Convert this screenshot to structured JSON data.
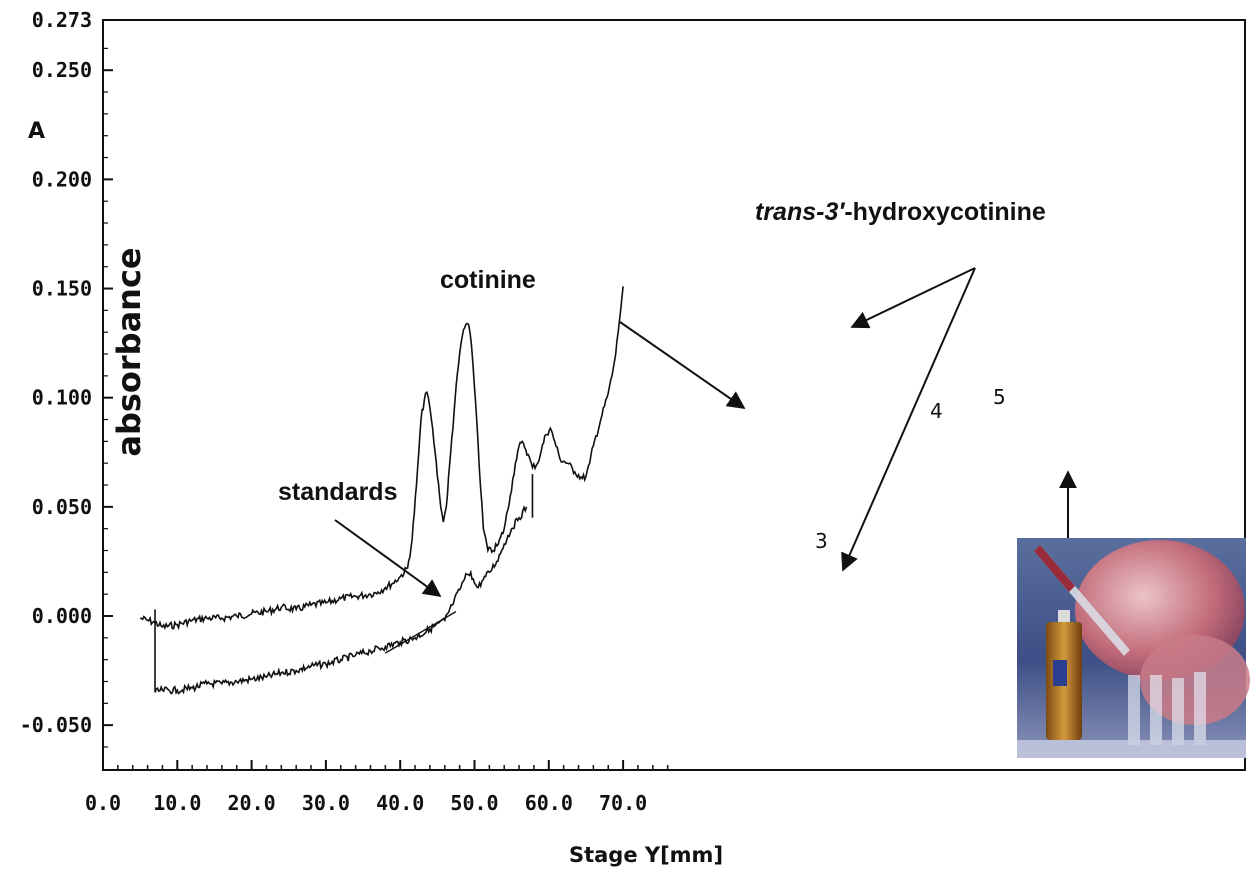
{
  "chart_data": {
    "type": "line",
    "title": "",
    "xlabel": "Stage Y[mm]",
    "ylabel": "absorbance",
    "y_unit_label": "A",
    "xlim": [
      0.0,
      77.0
    ],
    "ylim": [
      -0.07,
      0.273
    ],
    "x_ticks": [
      "0.0",
      "10.0",
      "20.0",
      "30.0",
      "40.0",
      "50.0",
      "60.0",
      "70.0"
    ],
    "x_tick_values": [
      0,
      10,
      20,
      30,
      40,
      50,
      60,
      70
    ],
    "y_ticks": [
      "0.273",
      "0.250",
      "0.200",
      "0.150",
      "0.100",
      "0.050",
      "0.000",
      "-0.050"
    ],
    "y_tick_values": [
      0.273,
      0.25,
      0.2,
      0.15,
      0.1,
      0.05,
      0.0,
      -0.05
    ],
    "grid": false,
    "series": [
      {
        "key": "upper-trace",
        "color": "#111111",
        "x": [
          5,
          6,
          7,
          8,
          10,
          12,
          14,
          16,
          18,
          20,
          22,
          24,
          26,
          28,
          30,
          32,
          34,
          36,
          37,
          38,
          39,
          40,
          41,
          41.6,
          42.2,
          42.8,
          43.4,
          43.8,
          44.2,
          44.7,
          45.3,
          45.8,
          46.2,
          46.8,
          47.4,
          48,
          48.5,
          49,
          49.4,
          49.8,
          50.3,
          50.8,
          51.2,
          51.8,
          52.5,
          53.2,
          54,
          54.8,
          55.5,
          56,
          56.6,
          57.2,
          57.8,
          58.5,
          59,
          59.6,
          60.2,
          60.8,
          61.5,
          62.5,
          63.5,
          64.5,
          65,
          65.5,
          66,
          67,
          68,
          68.5,
          69,
          69.5,
          70
        ],
        "y": [
          -0.001,
          -0.002,
          -0.003,
          -0.005,
          -0.004,
          -0.002,
          -0.001,
          -0.001,
          0.0,
          0.001,
          0.002,
          0.004,
          0.003,
          0.005,
          0.006,
          0.008,
          0.009,
          0.01,
          0.011,
          0.013,
          0.015,
          0.018,
          0.022,
          0.035,
          0.06,
          0.09,
          0.102,
          0.1,
          0.09,
          0.075,
          0.055,
          0.043,
          0.05,
          0.075,
          0.1,
          0.12,
          0.131,
          0.134,
          0.13,
          0.115,
          0.09,
          0.06,
          0.04,
          0.03,
          0.03,
          0.033,
          0.04,
          0.055,
          0.07,
          0.078,
          0.079,
          0.074,
          0.068,
          0.07,
          0.076,
          0.083,
          0.086,
          0.08,
          0.072,
          0.07,
          0.066,
          0.063,
          0.064,
          0.07,
          0.078,
          0.09,
          0.102,
          0.11,
          0.12,
          0.135,
          0.151
        ]
      },
      {
        "key": "lower-trace",
        "color": "#111111",
        "x": [
          7,
          8,
          10,
          12,
          14,
          16,
          18,
          20,
          22,
          24,
          26,
          28,
          30,
          32,
          34,
          36,
          38,
          40,
          42,
          44,
          46,
          47,
          48,
          48.5,
          49,
          49.5,
          50,
          50.5,
          51,
          52,
          53,
          54,
          55,
          56,
          57
        ],
        "y": [
          -0.035,
          -0.034,
          -0.034,
          -0.033,
          -0.031,
          -0.031,
          -0.03,
          -0.029,
          -0.028,
          -0.026,
          -0.025,
          -0.023,
          -0.022,
          -0.02,
          -0.018,
          -0.016,
          -0.014,
          -0.012,
          -0.01,
          -0.006,
          -0.002,
          0.005,
          0.012,
          0.016,
          0.019,
          0.02,
          0.015,
          0.013,
          0.016,
          0.02,
          0.025,
          0.033,
          0.04,
          0.045,
          0.05
        ]
      }
    ],
    "annotations": {
      "cotinine": "cotinine",
      "hydroxy_prefix": "trans-3′",
      "hydroxy_suffix": "-hydroxycotinine",
      "standards": "standards",
      "peak_3": "3",
      "peak_4": "4",
      "peak_5": "5"
    }
  }
}
